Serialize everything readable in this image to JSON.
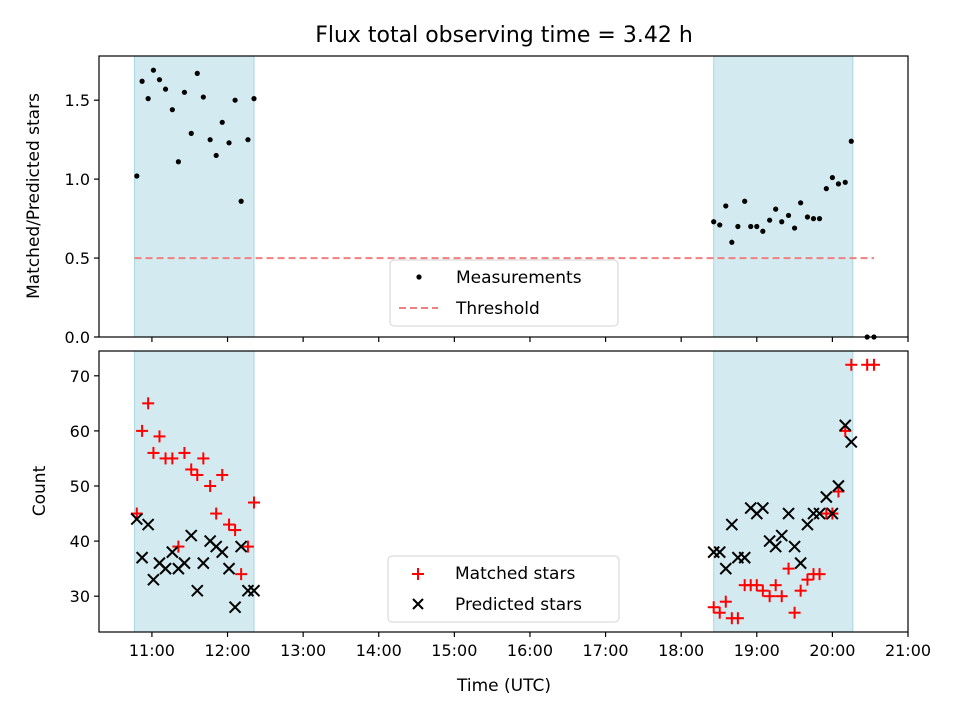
{
  "title": "Flux total observing time = 3.42 h",
  "colors": {
    "shade": "#d3ebf0",
    "shade_edge": "#a8d6e0",
    "measurement": "#000000",
    "threshold": "#f08080",
    "matched": "#ff0000",
    "predicted": "#000000"
  },
  "chart_data": [
    {
      "type": "scatter",
      "panel": "top",
      "ylabel": "Matched/Predicted stars",
      "xlim": [
        10.3,
        21.0
      ],
      "ylim": [
        0,
        1.78
      ],
      "yticks": [
        0,
        0.5,
        1.0,
        1.5
      ],
      "ytick_labels": [
        "0.0",
        "0.5",
        "1.0",
        "1.5"
      ],
      "shaded_intervals": [
        [
          10.77,
          12.35
        ],
        [
          18.43,
          20.27
        ]
      ],
      "threshold": {
        "value": 0.5,
        "x": [
          10.77,
          20.55
        ]
      },
      "legend": {
        "position": "lower-center",
        "entries": [
          "Measurements",
          "Threshold"
        ]
      },
      "measurements": [
        [
          10.8,
          1.02
        ],
        [
          10.87,
          1.62
        ],
        [
          10.95,
          1.51
        ],
        [
          11.02,
          1.69
        ],
        [
          11.1,
          1.63
        ],
        [
          11.18,
          1.57
        ],
        [
          11.27,
          1.44
        ],
        [
          11.35,
          1.11
        ],
        [
          11.43,
          1.55
        ],
        [
          11.52,
          1.29
        ],
        [
          11.6,
          1.67
        ],
        [
          11.68,
          1.52
        ],
        [
          11.77,
          1.25
        ],
        [
          11.85,
          1.15
        ],
        [
          11.93,
          1.36
        ],
        [
          12.02,
          1.23
        ],
        [
          12.1,
          1.5
        ],
        [
          12.18,
          0.86
        ],
        [
          12.27,
          1.25
        ],
        [
          12.35,
          1.51
        ],
        [
          18.43,
          0.73
        ],
        [
          18.51,
          0.71
        ],
        [
          18.59,
          0.83
        ],
        [
          18.67,
          0.6
        ],
        [
          18.75,
          0.7
        ],
        [
          18.84,
          0.86
        ],
        [
          18.92,
          0.7
        ],
        [
          19.0,
          0.7
        ],
        [
          19.08,
          0.67
        ],
        [
          19.17,
          0.74
        ],
        [
          19.25,
          0.81
        ],
        [
          19.33,
          0.73
        ],
        [
          19.42,
          0.77
        ],
        [
          19.5,
          0.69
        ],
        [
          19.58,
          0.85
        ],
        [
          19.67,
          0.76
        ],
        [
          19.75,
          0.75
        ],
        [
          19.83,
          0.75
        ],
        [
          19.92,
          0.94
        ],
        [
          20.0,
          1.01
        ],
        [
          20.08,
          0.97
        ],
        [
          20.17,
          0.98
        ],
        [
          20.25,
          1.24
        ],
        [
          20.46,
          0.0
        ],
        [
          20.55,
          0.0
        ]
      ]
    },
    {
      "type": "scatter",
      "panel": "bottom",
      "xlabel": "Time (UTC)",
      "ylabel": "Count",
      "xlim": [
        10.3,
        21.0
      ],
      "ylim": [
        23.5,
        74.5
      ],
      "yticks": [
        30,
        40,
        50,
        60,
        70
      ],
      "ytick_labels": [
        "30",
        "40",
        "50",
        "60",
        "70"
      ],
      "xticks": [
        11,
        12,
        13,
        14,
        15,
        16,
        17,
        18,
        19,
        20,
        21
      ],
      "xtick_labels": [
        "11:00",
        "12:00",
        "13:00",
        "14:00",
        "15:00",
        "16:00",
        "17:00",
        "18:00",
        "19:00",
        "20:00",
        "21:00"
      ],
      "shaded_intervals": [
        [
          10.77,
          12.35
        ],
        [
          18.43,
          20.27
        ]
      ],
      "legend": {
        "position": "lower-center",
        "entries": [
          "Matched stars",
          "Predicted stars"
        ]
      },
      "series": [
        {
          "name": "Matched stars",
          "marker": "+",
          "points": [
            [
              10.8,
              45
            ],
            [
              10.87,
              60
            ],
            [
              10.95,
              65
            ],
            [
              11.02,
              56
            ],
            [
              11.1,
              59
            ],
            [
              11.18,
              55
            ],
            [
              11.27,
              55
            ],
            [
              11.35,
              39
            ],
            [
              11.43,
              56
            ],
            [
              11.52,
              53
            ],
            [
              11.6,
              52
            ],
            [
              11.68,
              55
            ],
            [
              11.77,
              50
            ],
            [
              11.85,
              45
            ],
            [
              11.93,
              52
            ],
            [
              12.02,
              43
            ],
            [
              12.1,
              42
            ],
            [
              12.18,
              34
            ],
            [
              12.27,
              39
            ],
            [
              12.35,
              47
            ],
            [
              18.43,
              28
            ],
            [
              18.51,
              27
            ],
            [
              18.59,
              29
            ],
            [
              18.67,
              26
            ],
            [
              18.75,
              26
            ],
            [
              18.84,
              32
            ],
            [
              18.92,
              32
            ],
            [
              19.0,
              32
            ],
            [
              19.08,
              31
            ],
            [
              19.17,
              30
            ],
            [
              19.25,
              32
            ],
            [
              19.33,
              30
            ],
            [
              19.42,
              35
            ],
            [
              19.5,
              27
            ],
            [
              19.58,
              31
            ],
            [
              19.67,
              33
            ],
            [
              19.75,
              34
            ],
            [
              19.83,
              34
            ],
            [
              19.92,
              45
            ],
            [
              20.0,
              45
            ],
            [
              20.08,
              49
            ],
            [
              20.17,
              60
            ],
            [
              20.25,
              72
            ],
            [
              20.46,
              72
            ],
            [
              20.55,
              72
            ]
          ]
        },
        {
          "name": "Predicted stars",
          "marker": "x",
          "points": [
            [
              10.8,
              44
            ],
            [
              10.87,
              37
            ],
            [
              10.95,
              43
            ],
            [
              11.02,
              33
            ],
            [
              11.1,
              36
            ],
            [
              11.18,
              35
            ],
            [
              11.27,
              38
            ],
            [
              11.35,
              35
            ],
            [
              11.43,
              36
            ],
            [
              11.52,
              41
            ],
            [
              11.6,
              31
            ],
            [
              11.68,
              36
            ],
            [
              11.77,
              40
            ],
            [
              11.85,
              39
            ],
            [
              11.93,
              38
            ],
            [
              12.02,
              35
            ],
            [
              12.1,
              28
            ],
            [
              12.18,
              39
            ],
            [
              12.27,
              31
            ],
            [
              12.35,
              31
            ],
            [
              18.43,
              38
            ],
            [
              18.51,
              38
            ],
            [
              18.59,
              35
            ],
            [
              18.67,
              43
            ],
            [
              18.75,
              37
            ],
            [
              18.84,
              37
            ],
            [
              18.92,
              46
            ],
            [
              19.0,
              45
            ],
            [
              19.08,
              46
            ],
            [
              19.17,
              40
            ],
            [
              19.25,
              39
            ],
            [
              19.33,
              41
            ],
            [
              19.42,
              45
            ],
            [
              19.5,
              39
            ],
            [
              19.58,
              36
            ],
            [
              19.67,
              43
            ],
            [
              19.75,
              45
            ],
            [
              19.83,
              45
            ],
            [
              19.92,
              48
            ],
            [
              20.0,
              45
            ],
            [
              20.08,
              50
            ],
            [
              20.17,
              61
            ],
            [
              20.25,
              58
            ]
          ]
        }
      ]
    }
  ]
}
